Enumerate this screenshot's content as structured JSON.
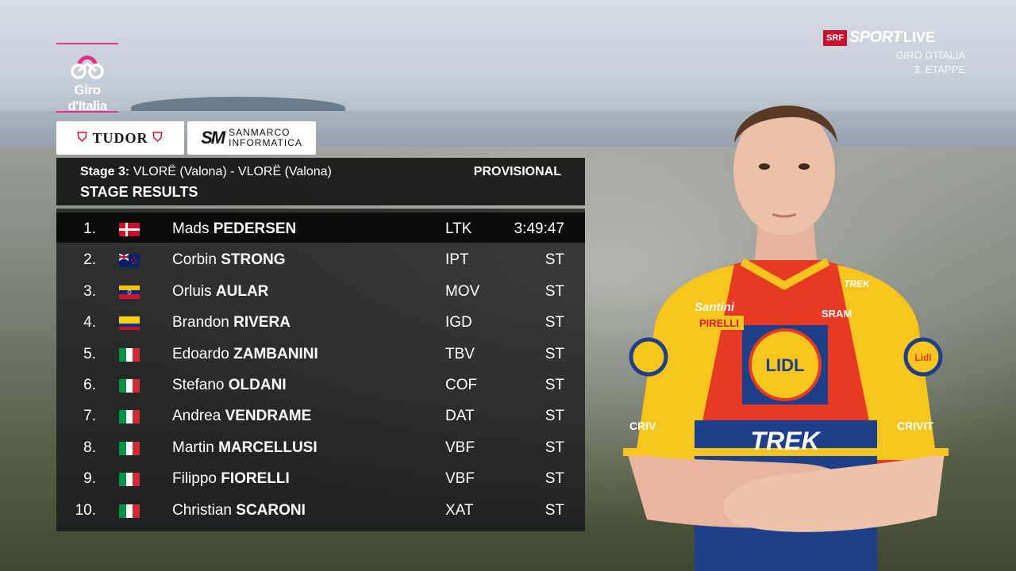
{
  "sponsors": {
    "giro_logo_text": "Giro d'Italia",
    "tudor": "TUDOR",
    "sanmarco_mark": "SM",
    "sanmarco_line1": "SANMARCO",
    "sanmarco_line2": "INFORMATICA"
  },
  "broadcaster": {
    "badge": "SRF",
    "name": "SPORT",
    "live": "LIVE",
    "line1": "GIRO D'ITALIA",
    "line2": "3. ETAPPE"
  },
  "header": {
    "stage_prefix": "Stage 3:",
    "stage_route": "VLORË (Valona) - VLORË (Valona)",
    "status": "PROVISIONAL",
    "title": "STAGE RESULTS"
  },
  "results": [
    {
      "pos": "1.",
      "flag": "denmark-flag",
      "first": "Mads",
      "last": "PEDERSEN",
      "team": "LTK",
      "time": "3:49:47"
    },
    {
      "pos": "2.",
      "flag": "new-zealand-flag",
      "first": "Corbin",
      "last": "STRONG",
      "team": "IPT",
      "time": "ST"
    },
    {
      "pos": "3.",
      "flag": "venezuela-flag",
      "first": "Orluis",
      "last": "AULAR",
      "team": "MOV",
      "time": "ST"
    },
    {
      "pos": "4.",
      "flag": "colombia-flag",
      "first": "Brandon",
      "last": "RIVERA",
      "team": "IGD",
      "time": "ST"
    },
    {
      "pos": "5.",
      "flag": "italy-flag",
      "first": "Edoardo",
      "last": "ZAMBANINI",
      "team": "TBV",
      "time": "ST"
    },
    {
      "pos": "6.",
      "flag": "italy-flag",
      "first": "Stefano",
      "last": "OLDANI",
      "team": "COF",
      "time": "ST"
    },
    {
      "pos": "7.",
      "flag": "italy-flag",
      "first": "Andrea",
      "last": "VENDRAME",
      "team": "DAT",
      "time": "ST"
    },
    {
      "pos": "8.",
      "flag": "italy-flag",
      "first": "Martin",
      "last": "MARCELLUSI",
      "team": "VBF",
      "time": "ST"
    },
    {
      "pos": "9.",
      "flag": "italy-flag",
      "first": "Filippo",
      "last": "FIORELLI",
      "team": "VBF",
      "time": "ST"
    },
    {
      "pos": "10.",
      "flag": "italy-flag",
      "first": "Christian",
      "last": "SCARONI",
      "team": "XAT",
      "time": "ST"
    }
  ],
  "rider_jersey": {
    "chest_logo": "LIDL",
    "sleeve_logo": "Lidl",
    "band_text": "TREK",
    "sponsor1": "Santini",
    "sponsor2": "PIRELLI",
    "sponsor3": "SRAM",
    "sponsor4": "TREK",
    "sleeve_text": "CRIVIT",
    "arm_text": "CRIV"
  },
  "colors": {
    "giro_pink": "#e4318a",
    "jersey_red": "#e63a24",
    "jersey_yellow": "#f7c51e",
    "jersey_blue": "#1e3f8a"
  }
}
